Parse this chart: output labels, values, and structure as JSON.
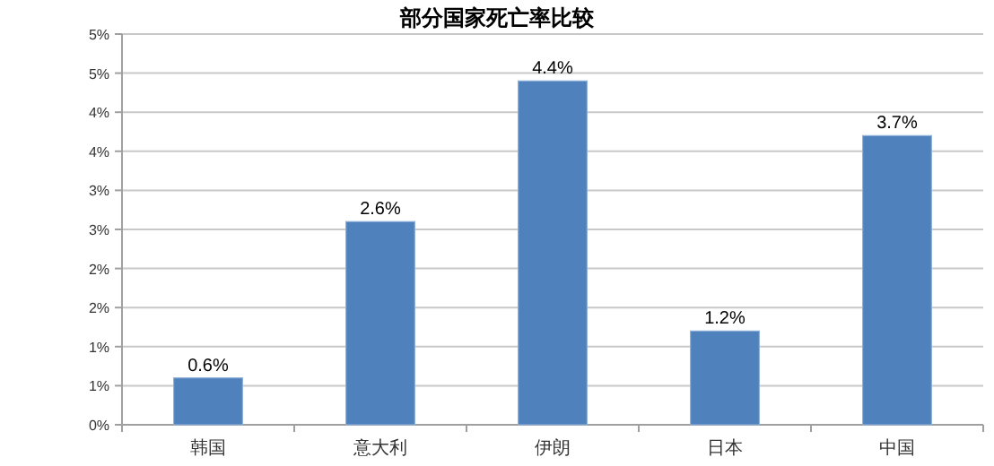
{
  "chart_data": {
    "type": "bar",
    "title": "部分国家死亡率比较",
    "categories": [
      "韩国",
      "意大利",
      "伊朗",
      "日本",
      "中国"
    ],
    "values": [
      0.6,
      2.6,
      4.4,
      1.2,
      3.7
    ],
    "value_labels": [
      "0.6%",
      "2.6%",
      "4.4%",
      "1.2%",
      "3.7%"
    ],
    "color": "#4f81bd",
    "ylim": [
      0,
      5
    ],
    "yticks": [
      {
        "value": 0,
        "label": "0%"
      },
      {
        "value": 0.5,
        "label": "1%"
      },
      {
        "value": 1,
        "label": "1%"
      },
      {
        "value": 1.5,
        "label": "2%"
      },
      {
        "value": 2,
        "label": "2%"
      },
      {
        "value": 2.5,
        "label": "3%"
      },
      {
        "value": 3,
        "label": "3%"
      },
      {
        "value": 3.5,
        "label": "4%"
      },
      {
        "value": 4,
        "label": "4%"
      },
      {
        "value": 4.5,
        "label": "5%"
      },
      {
        "value": 5,
        "label": "5%"
      }
    ],
    "grid": "y"
  }
}
